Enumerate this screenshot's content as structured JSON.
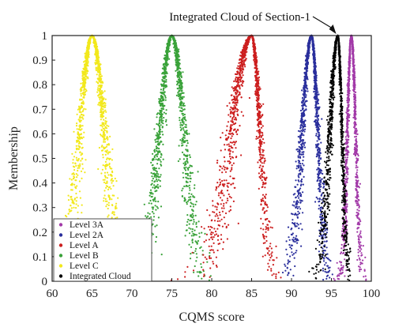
{
  "chart_data": {
    "type": "scatter",
    "title": "",
    "xlabel": "CQMS score",
    "ylabel": "Membership",
    "xlim": [
      60,
      100
    ],
    "ylim": [
      0,
      1
    ],
    "xticks": [
      "60",
      "65",
      "70",
      "75",
      "80",
      "85",
      "90",
      "95",
      "100"
    ],
    "yticks": [
      "0",
      "0.1",
      "0.2",
      "0.3",
      "0.4",
      "0.5",
      "0.6",
      "0.7",
      "0.8",
      "0.9",
      "1"
    ],
    "grid": false,
    "legend_position": "bottom-left",
    "series": [
      {
        "name": "Level 3A",
        "color": "#a23aa8",
        "peak_x": 97.5,
        "spread_left": 1.5,
        "spread_right": 1.6
      },
      {
        "name": "Level 2A",
        "color": "#2a2f9c",
        "peak_x": 92.5,
        "spread_left": 3.5,
        "spread_right": 2.4
      },
      {
        "name": "Level A",
        "color": "#cc1f1f",
        "peak_x": 85,
        "spread_left": 7.5,
        "spread_right": 3.2
      },
      {
        "name": "Level B",
        "color": "#3aa23a",
        "peak_x": 75,
        "spread_left": 4.6,
        "spread_right": 4.6
      },
      {
        "name": "Level C",
        "color": "#f2e81c",
        "peak_x": 65,
        "spread_left": 4.6,
        "spread_right": 4.6
      },
      {
        "name": "Integrated Cloud",
        "color": "#050505",
        "peak_x": 95.8,
        "spread_left": 3.0,
        "spread_right": 1.6
      }
    ],
    "annotations": [
      {
        "text": "Integrated Cloud of Section-1",
        "points_to_x": 95.8,
        "points_to_y": 1
      }
    ]
  }
}
